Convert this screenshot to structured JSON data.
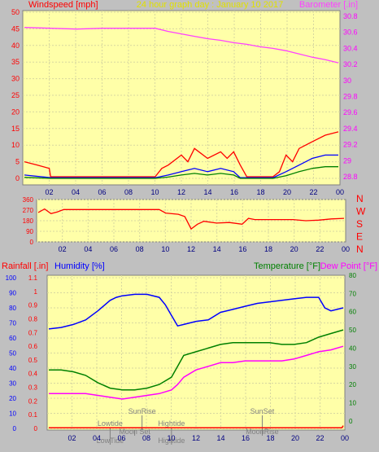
{
  "colors": {
    "background": "#c0c0c0",
    "plot_bg": "#ffffa8",
    "grid": "#d7d7a0",
    "wind_gust": "#ff0000",
    "wind_avg": "#0000ff",
    "wind_low": "#008000",
    "barometer": "#ff40ff",
    "direction": "#ff0000",
    "humidity": "#0000ff",
    "temperature": "#008000",
    "dewpoint": "#ff00ff",
    "rainfall": "#ff0000",
    "axis_red": "#ff0000",
    "axis_blue": "#0000ff",
    "axis_green": "#008000",
    "axis_magenta": "#ff00ff",
    "title": "#e0e000",
    "event_text": "#808080"
  },
  "chart_data": [
    {
      "type": "line",
      "name": "wind-barometer",
      "title": "24 hour graph day : January 10 2017",
      "left_label": "Windspeed [mph]",
      "right_label": "Barometer [.in]",
      "x_ticks": [
        "02",
        "04",
        "06",
        "08",
        "10",
        "12",
        "14",
        "16",
        "18",
        "20",
        "22",
        "00"
      ],
      "x_range": [
        0,
        24
      ],
      "ylim": [
        0,
        50
      ],
      "y_ticks": [
        "0",
        "5",
        "10",
        "15",
        "20",
        "25",
        "30",
        "35",
        "40",
        "45",
        "50"
      ],
      "y2lim": [
        28.7,
        30.87
      ],
      "y2_ticks": [
        "28.8",
        "29",
        "29.2",
        "29.4",
        "29.6",
        "29.8",
        "30",
        "30.2",
        "30.4",
        "30.6",
        "30.8"
      ],
      "series": [
        {
          "key": "barometer",
          "x": [
            0,
            2,
            4,
            6,
            8,
            10,
            11,
            12,
            13,
            14,
            15,
            16,
            17,
            18,
            19,
            20,
            21,
            22,
            23,
            24
          ],
          "y": [
            30.66,
            30.65,
            30.64,
            30.65,
            30.65,
            30.65,
            30.61,
            30.58,
            30.55,
            30.52,
            30.5,
            30.47,
            30.45,
            30.42,
            30.4,
            30.37,
            30.33,
            30.29,
            30.26,
            30.22
          ]
        },
        {
          "key": "gust",
          "x": [
            0,
            1,
            1.9,
            2,
            10,
            10.5,
            11,
            12,
            12.5,
            13,
            14,
            15,
            15.5,
            16,
            16.5,
            17,
            19,
            19.5,
            20,
            20.5,
            21,
            22,
            23,
            24
          ],
          "y": [
            5,
            4,
            3,
            0.5,
            0.5,
            3,
            4,
            7,
            5,
            9,
            6,
            8,
            6,
            8,
            4,
            0.5,
            0.5,
            2,
            7,
            5,
            9,
            11,
            13,
            14
          ]
        },
        {
          "key": "average",
          "x": [
            0,
            2,
            10,
            11,
            12,
            13,
            14,
            15,
            16,
            16.5,
            19,
            20,
            21,
            22,
            23,
            24
          ],
          "y": [
            1,
            0.2,
            0.2,
            1,
            2,
            3,
            2,
            3,
            2,
            0.2,
            0.2,
            2,
            4,
            6,
            7,
            7
          ]
        },
        {
          "key": "low",
          "x": [
            0,
            2,
            10,
            11,
            12,
            13,
            14,
            15,
            16,
            16.5,
            19,
            20,
            21,
            22,
            23,
            24
          ],
          "y": [
            0.3,
            0,
            0,
            0.4,
            1,
            1.5,
            1,
            1.5,
            1,
            0,
            0,
            0.8,
            2,
            3,
            3.5,
            3.5
          ]
        }
      ]
    },
    {
      "type": "line",
      "name": "wind-direction",
      "x_ticks": [
        "02",
        "04",
        "06",
        "08",
        "10",
        "12",
        "14",
        "16",
        "18",
        "20",
        "22",
        "00"
      ],
      "x_range": [
        0,
        24
      ],
      "ylim": [
        0,
        360
      ],
      "y_ticks": [
        "0",
        "90",
        "180",
        "270",
        "360"
      ],
      "compass": [
        "N",
        "W",
        "S",
        "E",
        "N"
      ],
      "series": [
        {
          "key": "direction",
          "x": [
            0,
            0.5,
            1,
            1.5,
            2,
            9.5,
            10,
            11,
            11.5,
            12,
            12.5,
            13,
            14,
            15,
            16,
            16.5,
            17,
            20,
            21,
            22,
            23,
            24
          ],
          "y": [
            250,
            280,
            240,
            255,
            275,
            275,
            245,
            235,
            215,
            110,
            150,
            175,
            160,
            165,
            150,
            200,
            190,
            190,
            180,
            185,
            195,
            200
          ]
        }
      ]
    },
    {
      "type": "line",
      "name": "temperature-humidity",
      "rain_label": "Rainfall [.in]",
      "humidity_label": "Humidity [%]",
      "temperature_label": "Temperature [°F]",
      "dewpoint_label": "Dew Point [°F]",
      "x_ticks": [
        "02",
        "04",
        "06",
        "08",
        "10",
        "12",
        "14",
        "16",
        "18",
        "20",
        "22",
        "00"
      ],
      "x_range": [
        0,
        24
      ],
      "humidity_lim": [
        0,
        100
      ],
      "humidity_ticks": [
        "0",
        "10",
        "20",
        "30",
        "40",
        "50",
        "60",
        "70",
        "80",
        "90",
        "100"
      ],
      "rain_lim": [
        0,
        1.1
      ],
      "rain_ticks": [
        "0",
        "0.1",
        "0.2",
        "0.3",
        "0.4",
        "0.5",
        "0.6",
        "0.7",
        "0.8",
        "0.9",
        "1",
        "1.1"
      ],
      "temp_lim": [
        -5,
        80
      ],
      "temp_ticks": [
        "0",
        "10",
        "20",
        "30",
        "40",
        "50",
        "60",
        "70",
        "80"
      ],
      "series": [
        {
          "key": "humidity",
          "x": [
            0,
            1,
            2,
            3,
            4,
            5,
            5.5,
            6,
            7,
            8,
            9,
            9.5,
            10,
            10.5,
            11,
            12,
            13,
            14,
            15,
            16,
            17,
            18,
            19,
            20,
            21,
            22,
            22.5,
            23,
            24
          ],
          "y": [
            66,
            67,
            69,
            72,
            78,
            85,
            87,
            88,
            89,
            89,
            87,
            82,
            75,
            68,
            69,
            71,
            72,
            77,
            79,
            81,
            83,
            84,
            85,
            86,
            87,
            87,
            80,
            78,
            80
          ]
        },
        {
          "key": "temperature",
          "x": [
            0,
            1,
            2,
            3,
            4,
            5,
            6,
            7,
            8,
            9,
            10,
            10.5,
            11,
            12,
            13,
            14,
            15,
            16,
            17,
            18,
            19,
            20,
            21,
            22,
            23,
            24
          ],
          "y": [
            28,
            28,
            27,
            25,
            21,
            18,
            17,
            17,
            18,
            20,
            24,
            30,
            36,
            38,
            40,
            42,
            43,
            43,
            43,
            43,
            42,
            42,
            43,
            46,
            48,
            50
          ]
        },
        {
          "key": "dewpoint",
          "x": [
            0,
            1,
            2,
            3,
            4,
            5,
            6,
            7,
            8,
            9,
            10,
            10.5,
            11,
            12,
            13,
            14,
            15,
            16,
            17,
            18,
            19,
            20,
            21,
            22,
            23,
            24
          ],
          "y": [
            15,
            15,
            15,
            15,
            14,
            13,
            12,
            13,
            14,
            15,
            17,
            20,
            24,
            28,
            30,
            32,
            32,
            33,
            33,
            33,
            33,
            34,
            36,
            38,
            39,
            41
          ]
        },
        {
          "key": "rainfall",
          "x": [
            0,
            23.9,
            24
          ],
          "y": [
            0.005,
            0.005,
            0.02
          ]
        }
      ],
      "events": [
        {
          "label": "Lowtide",
          "hour": 5,
          "row": 0
        },
        {
          "label": "LowTide",
          "hour": 5,
          "row": 2
        },
        {
          "label": "Moon Set",
          "hour": 7,
          "row": 1
        },
        {
          "label": "SunRise",
          "hour": 7.6,
          "row": -1
        },
        {
          "label": "Hightide",
          "hour": 10,
          "row": 0
        },
        {
          "label": "Hightide",
          "hour": 10,
          "row": 2
        },
        {
          "label": "SunSet",
          "hour": 17.4,
          "row": -1
        },
        {
          "label": "MoonRise",
          "hour": 17.4,
          "row": 1
        }
      ]
    }
  ]
}
